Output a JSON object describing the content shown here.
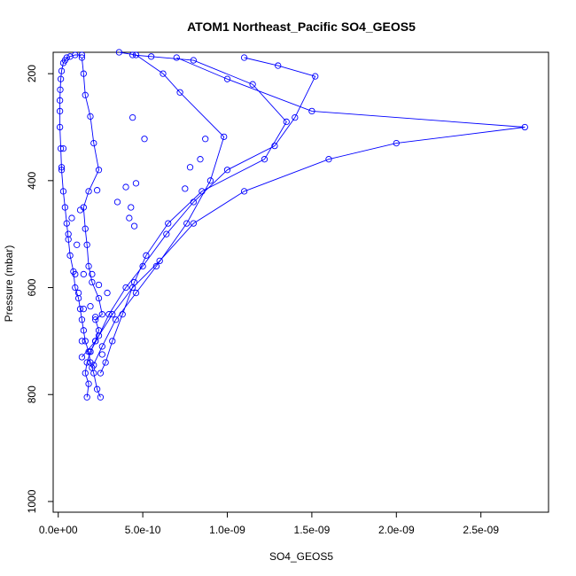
{
  "chart_data": {
    "type": "line",
    "title": "ATOM1 Northeast_Pacific SO4_GEOS5",
    "xlabel": "SO4_GEOS5",
    "ylabel": "Pressure (mbar)",
    "xlim": [
      -3e-11,
      2.9e-09
    ],
    "ylim": [
      1020,
      160
    ],
    "y_reversed": true,
    "x_ticks": [
      {
        "value": 0,
        "label": "0.0e+00"
      },
      {
        "value": 5e-10,
        "label": "5.0e-10"
      },
      {
        "value": 1e-09,
        "label": "1.0e-09"
      },
      {
        "value": 1.5e-09,
        "label": "1.5e-09"
      },
      {
        "value": 2e-09,
        "label": "2.0e-09"
      },
      {
        "value": 2.5e-09,
        "label": "2.5e-09"
      }
    ],
    "y_ticks": [
      {
        "value": 200,
        "label": "200"
      },
      {
        "value": 400,
        "label": "400"
      },
      {
        "value": 600,
        "label": "600"
      },
      {
        "value": 800,
        "label": "800"
      },
      {
        "value": 1000,
        "label": "1000"
      }
    ],
    "grid": false,
    "line_color": "#0000ff",
    "marker": "open-circle",
    "series": [
      {
        "x": [
          2.5e-10,
          2.3e-10,
          2.1e-10,
          1.9e-10,
          1.8e-10,
          1.6e-10,
          1.5e-10,
          1.4e-10,
          1.3e-10,
          1.2e-10,
          1e-10,
          9e-11,
          7e-11,
          6e-11,
          5e-11,
          4e-11,
          3e-11,
          2e-11,
          1.5e-11,
          1e-11,
          1e-11,
          1e-11,
          1.2e-11,
          1.5e-11,
          2e-11,
          3e-11,
          4e-11,
          5e-11,
          7e-11,
          1e-10,
          1.4e-10
        ],
        "y": [
          805,
          790,
          760,
          740,
          720,
          700,
          680,
          660,
          640,
          620,
          600,
          570,
          540,
          510,
          480,
          450,
          420,
          380,
          340,
          300,
          270,
          250,
          230,
          210,
          195,
          180,
          175,
          170,
          168,
          165,
          165
        ]
      },
      {
        "x": [
          1.7e-10,
          1.8e-10,
          1.6e-10,
          1.7e-10,
          1.9e-10,
          2.2e-10,
          2.4e-10,
          2.2e-10,
          2.6e-10,
          2.4e-10,
          2e-10,
          1.8e-10,
          1.7e-10,
          1.6e-10,
          1.5e-10,
          1.8e-10,
          2.4e-10,
          2.1e-10,
          1.9e-10,
          1.6e-10,
          1.5e-10,
          1.4e-10
        ],
        "y": [
          805,
          780,
          760,
          740,
          720,
          700,
          680,
          660,
          650,
          620,
          590,
          560,
          520,
          490,
          450,
          420,
          380,
          330,
          280,
          240,
          200,
          170
        ]
      },
      {
        "x": [
          2.5e-10,
          2.8e-10,
          3.2e-10,
          3.8e-10,
          4.5e-10,
          5.2e-10,
          6.5e-10,
          8.5e-10,
          1.22e-09,
          1.35e-09,
          1.15e-09,
          8e-10,
          5.5e-10,
          4.4e-10
        ],
        "y": [
          760,
          740,
          700,
          650,
          590,
          540,
          480,
          420,
          360,
          290,
          220,
          175,
          168,
          165
        ]
      },
      {
        "x": [
          1.9e-10,
          2.4e-10,
          3e-10,
          4e-10,
          5e-10,
          6.4e-10,
          8e-10,
          1e-09,
          1.28e-09,
          1.4e-09,
          1.52e-09,
          1.3e-09,
          1.1e-09
        ],
        "y": [
          720,
          690,
          650,
          600,
          560,
          500,
          440,
          380,
          335,
          282,
          205,
          185,
          170
        ]
      },
      {
        "x": [
          1.4e-10,
          2.2e-10,
          3.2e-10,
          4.4e-10,
          6e-10,
          8e-10,
          1.1e-09,
          1.6e-09,
          2e-09,
          2.76e-09,
          1.5e-09,
          1e-09,
          7e-10
        ],
        "y": [
          730,
          700,
          650,
          600,
          550,
          480,
          420,
          360,
          330,
          300,
          270,
          210,
          170
        ]
      },
      {
        "x": [
          2e-10,
          2.6e-10,
          3.4e-10,
          4.6e-10,
          5.8e-10,
          7.6e-10,
          9e-10,
          9.8e-10,
          7.2e-10,
          6.2e-10,
          4.6e-10,
          3.6e-10
        ],
        "y": [
          750,
          710,
          660,
          610,
          560,
          480,
          400,
          318,
          235,
          200,
          165,
          160
        ]
      }
    ],
    "extra_points": {
      "x": [
        2e-11,
        3e-11,
        6e-11,
        8e-11,
        1.1e-10,
        1.3e-10,
        2.3e-10,
        2e-10,
        1.2e-10,
        1.4e-10,
        2.1e-10,
        2.6e-10,
        3.5e-10,
        4.2e-10,
        4.5e-10,
        4.6e-10,
        5.1e-10,
        7.5e-10,
        8.4e-10,
        8.7e-10,
        7.8e-10,
        4.4e-10,
        4.3e-10,
        4e-10,
        2.9e-10,
        2.4e-10,
        2.2e-10,
        1.5e-10,
        1e-10,
        1.5e-10,
        1.9e-10
      ],
      "y": [
        375,
        340,
        500,
        470,
        520,
        455,
        418,
        575,
        610,
        700,
        745,
        725,
        440,
        470,
        485,
        405,
        322,
        415,
        360,
        322,
        375,
        282,
        450,
        412,
        610,
        595,
        655,
        640,
        575,
        575,
        635
      ]
    }
  }
}
